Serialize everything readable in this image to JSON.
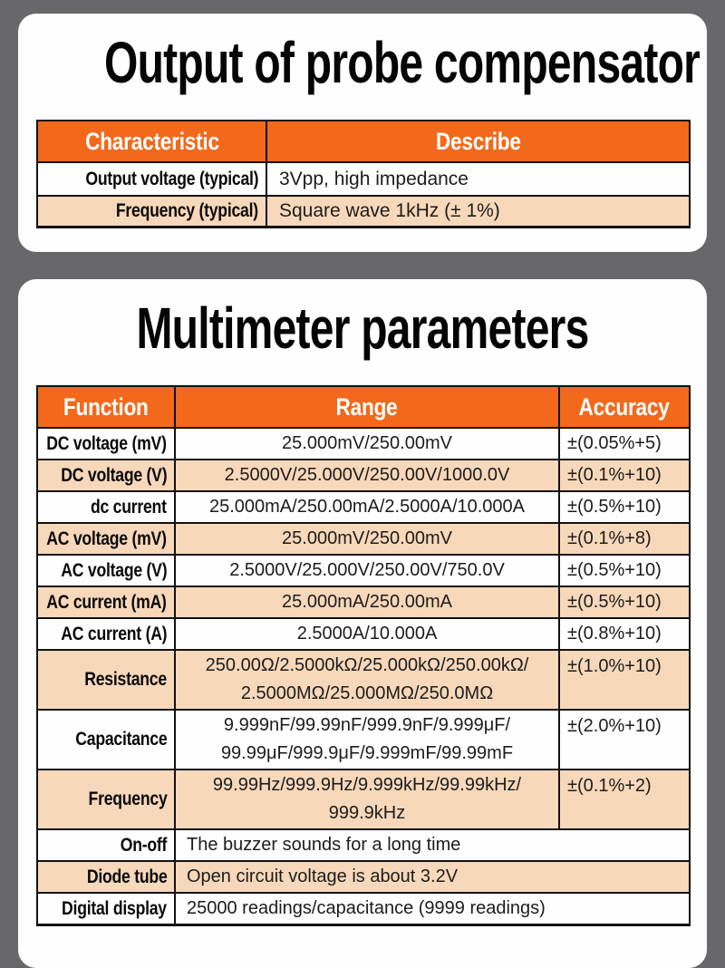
{
  "colors": {
    "background_gray": "#686769",
    "card_white": "#fefefe",
    "header_orange": "#f2691c",
    "row_peach": "#f8d8ba",
    "border_black": "#111111"
  },
  "probe_section": {
    "title": "Output of probe compensator",
    "columns": [
      "Characteristic",
      "Describe"
    ],
    "rows": [
      {
        "characteristic": "Output voltage (typical)",
        "describe": "3Vpp, high impedance"
      },
      {
        "characteristic": "Frequency (typical)",
        "describe": "Square wave 1kHz (± 1%)"
      }
    ]
  },
  "multimeter_section": {
    "title": "Multimeter parameters",
    "columns": [
      "Function",
      "Range",
      "Accuracy"
    ],
    "rows": [
      {
        "function": "DC voltage (mV)",
        "range": "25.000mV/250.00mV",
        "accuracy": "±(0.05%+5)"
      },
      {
        "function": "DC voltage (V)",
        "range": "2.5000V/25.000V/250.00V/1000.0V",
        "accuracy": "±(0.1%+10)"
      },
      {
        "function": "dc current",
        "range": "25.000mA/250.00mA/2.5000A/10.000A",
        "accuracy": "±(0.5%+10)"
      },
      {
        "function": "AC voltage (mV)",
        "range": "25.000mV/250.00mV",
        "accuracy": "±(0.1%+8)"
      },
      {
        "function": "AC voltage (V)",
        "range": "2.5000V/25.000V/250.00V/750.0V",
        "accuracy": "±(0.5%+10)"
      },
      {
        "function": "AC current (mA)",
        "range": "25.000mA/250.00mA",
        "accuracy": "±(0.5%+10)"
      },
      {
        "function": "AC current (A)",
        "range": "2.5000A/10.000A",
        "accuracy": "±(0.8%+10)"
      },
      {
        "function": "Resistance",
        "range": "250.00Ω/2.5000kΩ/25.000kΩ/250.00kΩ/\n2.5000MΩ/25.000MΩ/250.0MΩ",
        "accuracy": "±(1.0%+10)"
      },
      {
        "function": "Capacitance",
        "range": "9.999nF/99.99nF/999.9nF/9.999μF/\n99.99μF/999.9μF/9.999mF/99.99mF",
        "accuracy": "±(2.0%+10)"
      },
      {
        "function": "Frequency",
        "range": "99.99Hz/999.9Hz/9.999kHz/99.99kHz/\n999.9kHz",
        "accuracy": "±(0.1%+2)"
      },
      {
        "function": "On-off",
        "value": "The buzzer sounds for a long time"
      },
      {
        "function": "Diode tube",
        "value": "Open circuit voltage is about 3.2V"
      },
      {
        "function": "Digital display",
        "value": "25000 readings/capacitance (9999 readings)"
      }
    ]
  }
}
